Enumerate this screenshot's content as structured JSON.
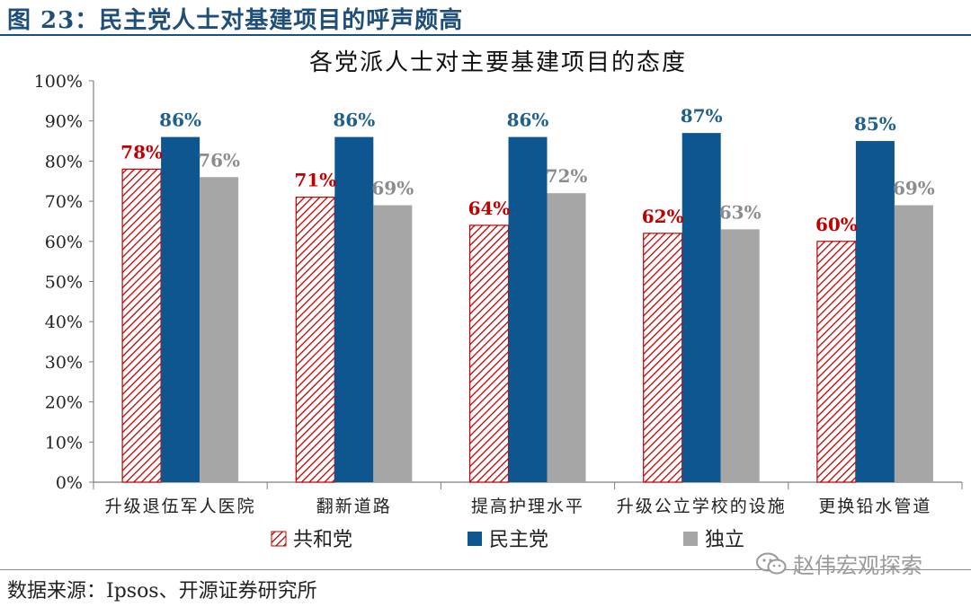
{
  "figure_heading": "图 23：民主党人士对基建项目的呼声颇高",
  "source_text": "数据来源：Ipsos、开源证券研究所",
  "watermark_text": "赵伟宏观探索",
  "watermark_icon": "wechat-icon",
  "chart_data": {
    "type": "bar",
    "title": "各党派人士对主要基建项目的态度",
    "xlabel": "",
    "ylabel": "",
    "ylim": [
      0,
      100
    ],
    "yticks": [
      "0%",
      "10%",
      "20%",
      "30%",
      "40%",
      "50%",
      "60%",
      "70%",
      "80%",
      "90%",
      "100%"
    ],
    "grid": false,
    "legend_position": "bottom",
    "categories": [
      "升级退伍军人医院",
      "翻新道路",
      "提高护理水平",
      "升级公立学校的设施",
      "更换铅水管道"
    ],
    "series": [
      {
        "name": "共和党",
        "values": [
          78,
          71,
          64,
          62,
          60
        ],
        "labels": [
          "78%",
          "71%",
          "64%",
          "62%",
          "60%"
        ],
        "color": "#c00000",
        "pattern": "diagonal-hatch",
        "label_color": "#c00000"
      },
      {
        "name": "民主党",
        "values": [
          86,
          86,
          86,
          87,
          85
        ],
        "labels": [
          "86%",
          "86%",
          "86%",
          "87%",
          "85%"
        ],
        "color": "#0d5690",
        "pattern": "solid",
        "label_color": "#1f5f8b"
      },
      {
        "name": "独立",
        "values": [
          76,
          69,
          72,
          63,
          69
        ],
        "labels": [
          "76%",
          "69%",
          "72%",
          "63%",
          "69%"
        ],
        "color": "#a6a6a6",
        "pattern": "solid",
        "label_color": "#8c8c8c"
      }
    ]
  }
}
